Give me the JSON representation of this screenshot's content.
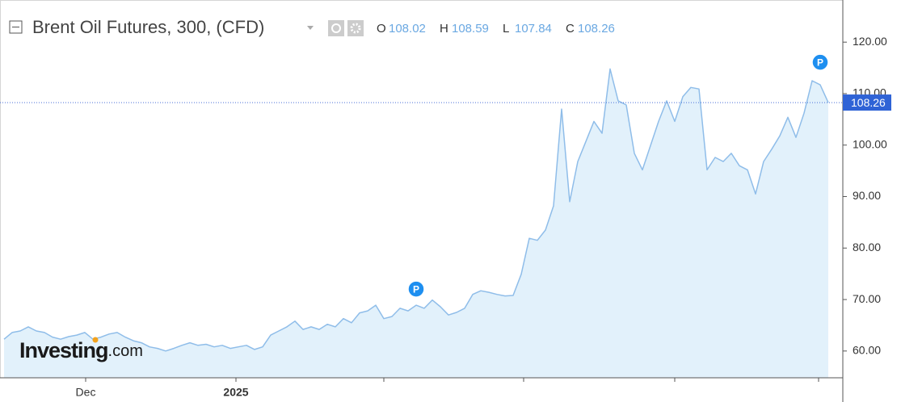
{
  "chart_data": {
    "type": "area",
    "title": "Brent Oil Futures, 300, (CFD)",
    "ohlc": [
      {
        "label": "O",
        "value": 108.02
      },
      {
        "label": "H",
        "value": 108.59
      },
      {
        "label": "L",
        "value": 107.84
      },
      {
        "label": "C",
        "value": 108.26
      }
    ],
    "last_price": 108.26,
    "logo": {
      "brand": "Investing",
      "suffix": ".com"
    },
    "annotations": [
      "P",
      "P"
    ],
    "color": "#8fbde9",
    "fill": "#e2f1fb",
    "values": [
      62.3,
      63.6,
      63.9,
      64.7,
      63.9,
      63.6,
      62.7,
      62.3,
      62.8,
      63.1,
      63.6,
      62.3,
      62.7,
      63.3,
      63.6,
      62.7,
      62.0,
      61.6,
      60.8,
      60.5,
      60.0,
      60.5,
      61.1,
      61.6,
      61.1,
      61.3,
      60.8,
      61.1,
      60.5,
      60.8,
      61.1,
      60.3,
      60.8,
      63.1,
      63.9,
      64.7,
      65.8,
      64.2,
      64.7,
      64.2,
      65.2,
      64.7,
      66.3,
      65.5,
      67.4,
      67.8,
      68.9,
      66.3,
      66.7,
      68.3,
      67.8,
      68.9,
      68.3,
      69.9,
      68.6,
      67.0,
      67.5,
      68.3,
      71.0,
      71.7,
      71.4,
      71.0,
      70.7,
      70.8,
      74.9,
      81.9,
      81.5,
      83.5,
      88.2,
      107.0,
      89.0,
      96.8,
      100.7,
      104.6,
      102.3,
      114.8,
      108.6,
      107.8,
      98.4,
      95.2,
      99.9,
      104.6,
      108.6,
      104.6,
      109.4,
      111.2,
      110.9,
      95.2,
      97.6,
      96.8,
      98.4,
      96.0,
      95.2,
      90.5,
      96.8,
      99.2,
      101.8,
      105.4,
      101.5,
      106.2,
      112.5,
      111.7,
      108.26
    ],
    "ylim": [
      54.8,
      127.4
    ],
    "yticks": [
      {
        "value": 60,
        "label": "60.00"
      },
      {
        "value": 70,
        "label": "70.00"
      },
      {
        "value": 80,
        "label": "80.00"
      },
      {
        "value": 90,
        "label": "90.00"
      },
      {
        "value": 100,
        "label": "100.00"
      },
      {
        "value": 110,
        "label": "110.00"
      },
      {
        "value": 120,
        "label": "120.00"
      }
    ],
    "xticks": [
      {
        "value": 10.1,
        "label": "Dec"
      },
      {
        "value": 28.7,
        "label": "2025"
      },
      {
        "value": 47,
        "label": null
      },
      {
        "value": 64.3,
        "label": null
      },
      {
        "value": 83,
        "label": null
      },
      {
        "value": 100.8,
        "label": null
      }
    ]
  }
}
